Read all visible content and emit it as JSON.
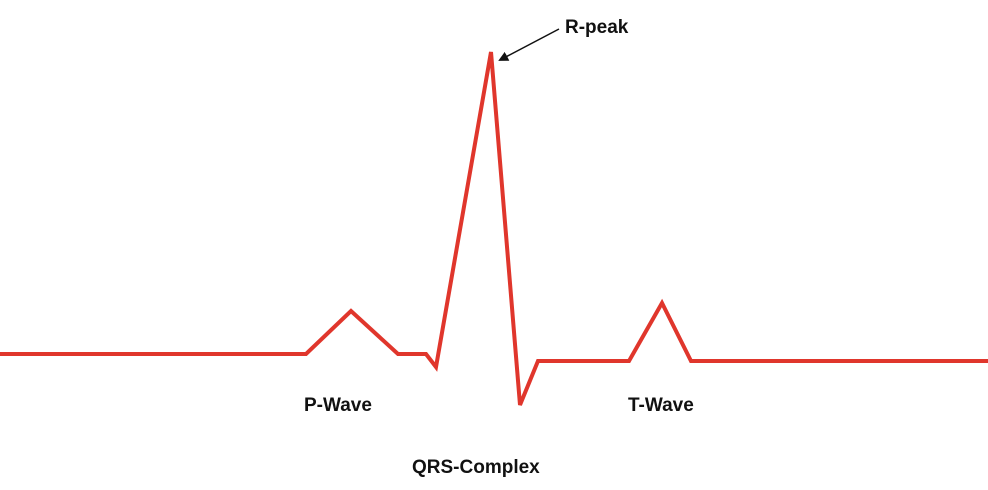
{
  "labels": {
    "r_peak": "R-peak",
    "p_wave": "P-Wave",
    "t_wave": "T-Wave",
    "qrs_complex": "QRS-Complex"
  },
  "colors": {
    "waveform": "#e0362c",
    "arrow": "#111111",
    "text": "#111111",
    "background": "#ffffff"
  }
}
